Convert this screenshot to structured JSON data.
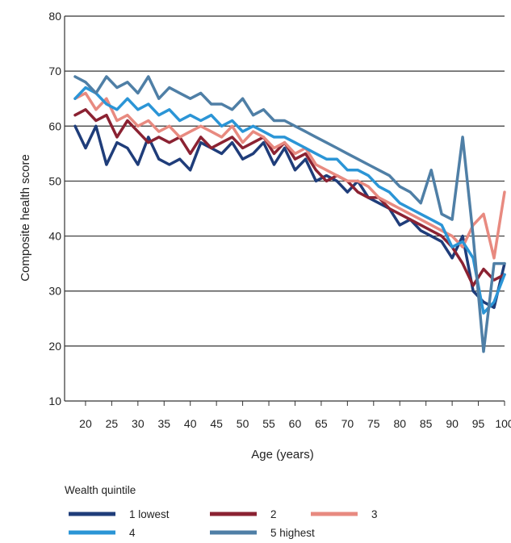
{
  "chart_data": {
    "type": "line",
    "xlabel": "Age (years)",
    "ylabel": "Composite health score",
    "xlim": [
      16,
      100
    ],
    "ylim": [
      10,
      80
    ],
    "xticks": [
      20,
      25,
      30,
      35,
      40,
      45,
      50,
      55,
      60,
      65,
      70,
      75,
      80,
      85,
      90,
      95,
      100
    ],
    "yticks": [
      10,
      20,
      30,
      40,
      50,
      60,
      70,
      80
    ],
    "grid": "horizontal",
    "legend_title": "Wealth quintile",
    "legend_position": "bottom",
    "x": [
      18,
      20,
      22,
      24,
      26,
      28,
      30,
      32,
      34,
      36,
      38,
      40,
      42,
      44,
      46,
      48,
      50,
      52,
      54,
      56,
      58,
      60,
      62,
      64,
      66,
      68,
      70,
      72,
      74,
      76,
      78,
      80,
      82,
      84,
      86,
      88,
      90,
      92,
      94,
      96,
      98,
      100
    ],
    "series": [
      {
        "name": "1 lowest",
        "color": "#1f3d7a",
        "values": [
          60,
          56,
          60,
          53,
          57,
          56,
          53,
          58,
          54,
          53,
          54,
          52,
          57,
          56,
          55,
          57,
          54,
          55,
          57,
          53,
          56,
          52,
          54,
          50,
          51,
          50,
          48,
          50,
          47,
          46,
          45,
          42,
          43,
          41,
          40,
          39,
          36,
          40,
          30,
          28,
          27,
          35
        ]
      },
      {
        "name": "2",
        "color": "#8b2232",
        "values": [
          62,
          63,
          61,
          62,
          58,
          61,
          59,
          57,
          58,
          57,
          58,
          55,
          58,
          56,
          57,
          58,
          56,
          57,
          58,
          55,
          57,
          54,
          55,
          52,
          50,
          51,
          50,
          48,
          47,
          47,
          45,
          44,
          43,
          42,
          41,
          40,
          38,
          35,
          31,
          34,
          32,
          33
        ]
      },
      {
        "name": "3",
        "color": "#e88a80",
        "values": [
          65,
          66,
          63,
          65,
          61,
          62,
          60,
          61,
          59,
          60,
          58,
          59,
          60,
          59,
          58,
          60,
          57,
          59,
          58,
          56,
          57,
          55,
          56,
          53,
          52,
          51,
          50,
          50,
          49,
          47,
          46,
          45,
          44,
          43,
          42,
          41,
          40,
          38,
          42,
          44,
          36,
          48
        ]
      },
      {
        "name": "4",
        "color": "#2b95d6",
        "values": [
          65,
          67,
          66,
          64,
          63,
          65,
          63,
          64,
          62,
          63,
          61,
          62,
          61,
          62,
          60,
          61,
          59,
          60,
          59,
          58,
          58,
          57,
          56,
          55,
          54,
          54,
          52,
          52,
          51,
          49,
          48,
          46,
          45,
          44,
          43,
          42,
          38,
          39,
          36,
          26,
          28,
          33
        ]
      },
      {
        "name": "5 highest",
        "color": "#4f7fa6",
        "values": [
          69,
          68,
          66,
          69,
          67,
          68,
          66,
          69,
          65,
          67,
          66,
          65,
          66,
          64,
          64,
          63,
          65,
          62,
          63,
          61,
          61,
          60,
          59,
          58,
          57,
          56,
          55,
          54,
          53,
          52,
          51,
          49,
          48,
          46,
          52,
          44,
          43,
          58,
          40,
          19,
          35,
          35
        ]
      }
    ]
  }
}
